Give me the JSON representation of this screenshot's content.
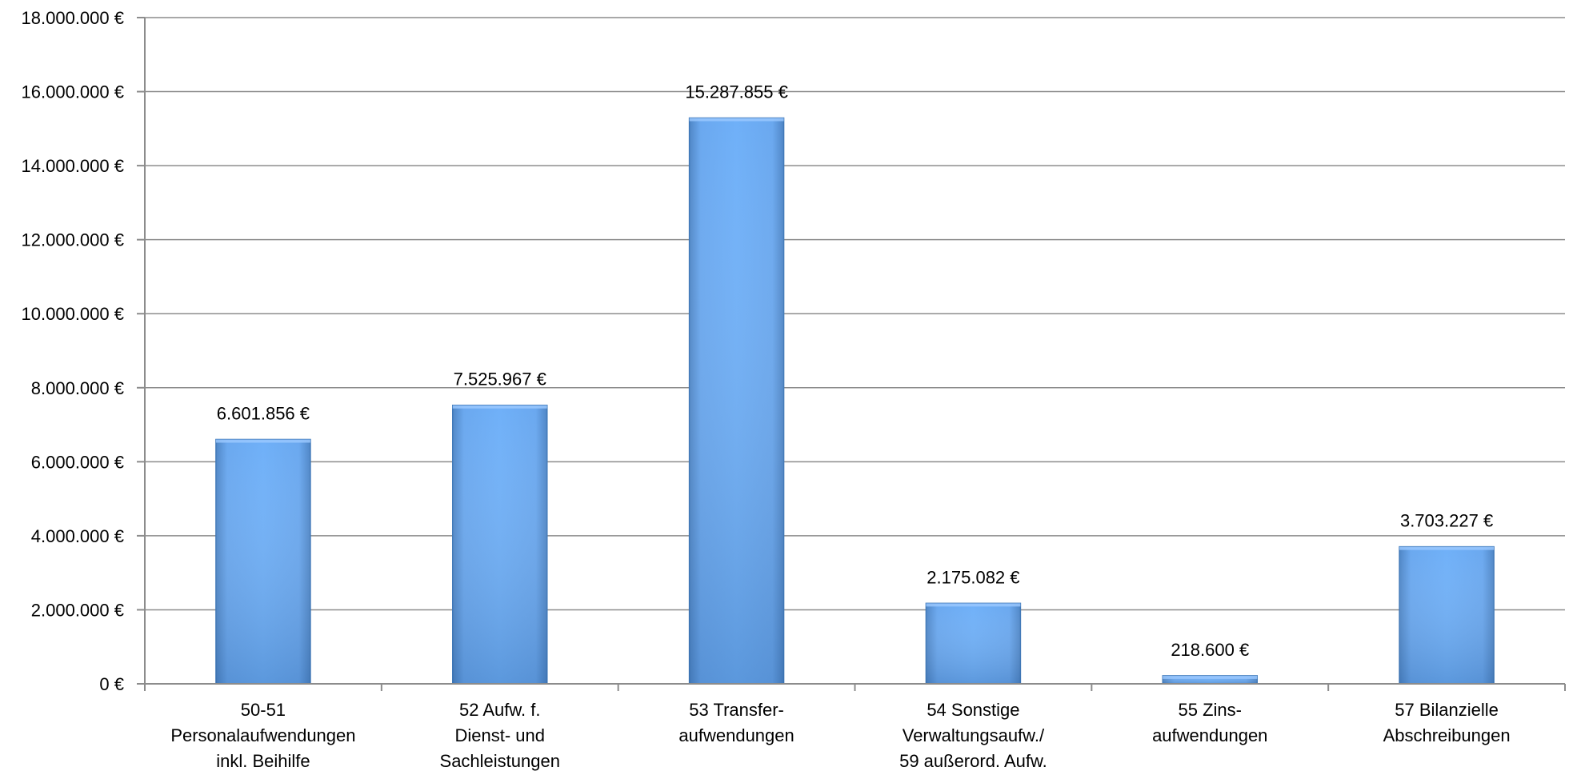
{
  "chart_data": {
    "type": "bar",
    "categories": [
      [
        "50-51",
        "Personalaufwendungen",
        "inkl. Beihilfe"
      ],
      [
        "52 Aufw. f.",
        "Dienst- und",
        "Sachleistungen"
      ],
      [
        "53 Transfer-",
        "aufwendungen"
      ],
      [
        "54 Sonstige",
        "Verwaltungsaufw./",
        "59 außerord. Aufw."
      ],
      [
        "55 Zins-",
        "aufwendungen"
      ],
      [
        "57 Bilanzielle",
        "Abschreibungen"
      ]
    ],
    "values": [
      6601856,
      7525967,
      15287855,
      2175082,
      218600,
      3703227
    ],
    "value_labels": [
      "6.601.856 €",
      "7.525.967 €",
      "15.287.855 €",
      "2.175.082 €",
      "218.600 €",
      "3.703.227 €"
    ],
    "ylim": [
      0,
      18000000
    ],
    "yticks": [
      0,
      2000000,
      4000000,
      6000000,
      8000000,
      10000000,
      12000000,
      14000000,
      16000000,
      18000000
    ],
    "ytick_labels": [
      "0 €",
      "2.000.000 €",
      "4.000.000 €",
      "6.000.000 €",
      "8.000.000 €",
      "10.000.000 €",
      "12.000.000 €",
      "14.000.000 €",
      "16.000.000 €",
      "18.000.000 €"
    ],
    "grid": true,
    "legend": "none",
    "bar_color": "#5b9bd5",
    "title": "",
    "xlabel": "",
    "ylabel": ""
  }
}
